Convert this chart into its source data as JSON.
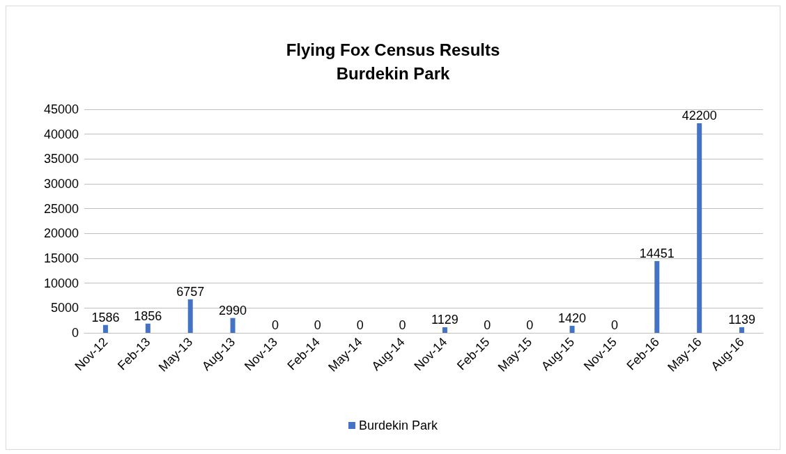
{
  "chart_data": {
    "type": "bar",
    "title": "Flying Fox Census Results\nBurdekin Park",
    "categories": [
      "Nov-12",
      "Feb-13",
      "May-13",
      "Aug-13",
      "Nov-13",
      "Feb-14",
      "May-14",
      "Aug-14",
      "Nov-14",
      "Feb-15",
      "May-15",
      "Aug-15",
      "Nov-15",
      "Feb-16",
      "May-16",
      "Aug-16"
    ],
    "series": [
      {
        "name": "Burdekin Park",
        "color": "#4472c4",
        "values": [
          1586,
          1856,
          6757,
          2990,
          0,
          0,
          0,
          0,
          1129,
          0,
          0,
          1420,
          0,
          14451,
          42200,
          1139
        ]
      }
    ],
    "ylim": [
      0,
      45000
    ],
    "yticks": [
      0,
      5000,
      10000,
      15000,
      20000,
      25000,
      30000,
      35000,
      40000,
      45000
    ],
    "grid": "y",
    "legend": "bottom",
    "data_labels": true
  }
}
